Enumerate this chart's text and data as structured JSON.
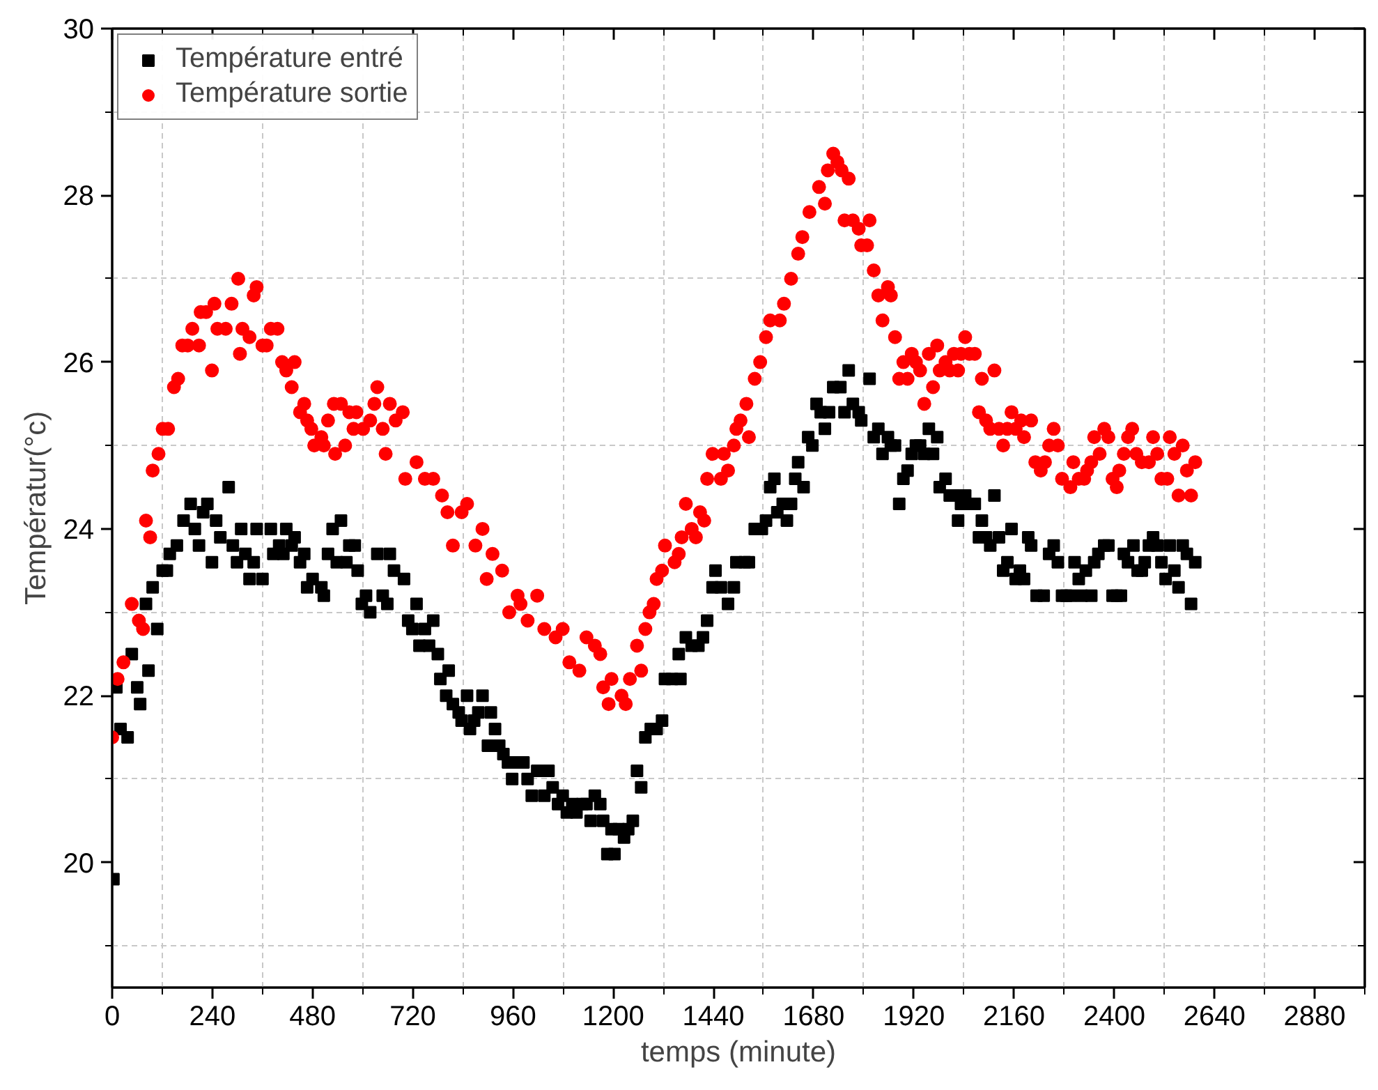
{
  "chart_data": {
    "type": "scatter",
    "xlabel": "temps (minute)",
    "ylabel": "Températur(°c)",
    "xlim": [
      0,
      3000
    ],
    "ylim": [
      18.5,
      30
    ],
    "xticks": [
      0,
      240,
      480,
      720,
      960,
      1200,
      1440,
      1680,
      1920,
      2160,
      2400,
      2640,
      2880
    ],
    "yticks": [
      20,
      22,
      24,
      26,
      28,
      30
    ],
    "grid": true,
    "legend": "top left",
    "series": [
      {
        "name": "Température entré",
        "color": "#000000",
        "marker": "square",
        "x": [
          3,
          10,
          20,
          37,
          47,
          60,
          67,
          81,
          87,
          97,
          108,
          121,
          131,
          138,
          155,
          171,
          188,
          198,
          208,
          218,
          228,
          239,
          249,
          259,
          279,
          289,
          299,
          309,
          319,
          329,
          339,
          346,
          360,
          380,
          386,
          400,
          410,
          417,
          430,
          437,
          450,
          460,
          467,
          480,
          501,
          507,
          517,
          528,
          538,
          548,
          561,
          568,
          581,
          588,
          598,
          608,
          618,
          635,
          648,
          659,
          665,
          675,
          699,
          709,
          719,
          729,
          736,
          749,
          759,
          769,
          780,
          786,
          800,
          806,
          816,
          830,
          837,
          850,
          857,
          867,
          877,
          887,
          900,
          907,
          917,
          927,
          937,
          948,
          958,
          971,
          985,
          995,
          1005,
          1018,
          1035,
          1045,
          1055,
          1068,
          1079,
          1089,
          1102,
          1112,
          1126,
          1136,
          1146,
          1156,
          1169,
          1176,
          1186,
          1196,
          1203,
          1213,
          1226,
          1236,
          1247,
          1257,
          1267,
          1277,
          1290,
          1304,
          1317,
          1324,
          1341,
          1361,
          1357,
          1374,
          1388,
          1404,
          1415,
          1425,
          1438,
          1445,
          1458,
          1475,
          1489,
          1495,
          1515,
          1525,
          1539,
          1556,
          1566,
          1576,
          1586,
          1593,
          1606,
          1616,
          1626,
          1636,
          1643,
          1656,
          1667,
          1677,
          1687,
          1697,
          1707,
          1717,
          1727,
          1744,
          1754,
          1764,
          1774,
          1788,
          1794,
          1814,
          1824,
          1835,
          1845,
          1858,
          1865,
          1875,
          1885,
          1895,
          1905,
          1915,
          1925,
          1935,
          1945,
          1956,
          1966,
          1976,
          1982,
          1996,
          2006,
          2016,
          2026,
          2033,
          2043,
          2053,
          2066,
          2076,
          2083,
          2093,
          2103,
          2113,
          2124,
          2134,
          2144,
          2154,
          2164,
          2174,
          2184,
          2194,
          2201,
          2214,
          2231,
          2244,
          2255,
          2265,
          2275,
          2285,
          2295,
          2305,
          2315,
          2322,
          2332,
          2345,
          2352,
          2362,
          2376,
          2386,
          2396,
          2406,
          2416,
          2423,
          2433,
          2446,
          2456,
          2466,
          2473,
          2483,
          2493,
          2503,
          2513,
          2523,
          2533,
          2544,
          2554,
          2564,
          2574,
          2584,
          2594
        ],
        "values": [
          19.8,
          22.1,
          21.6,
          21.5,
          22.5,
          22.1,
          21.9,
          23.1,
          22.3,
          23.3,
          22.8,
          23.5,
          23.5,
          23.7,
          23.8,
          24.1,
          24.3,
          24.0,
          23.8,
          24.2,
          24.3,
          23.6,
          24.1,
          23.9,
          24.5,
          23.8,
          23.6,
          24.0,
          23.7,
          23.4,
          23.6,
          24.0,
          23.4,
          24.0,
          23.7,
          23.8,
          23.7,
          24.0,
          23.8,
          23.9,
          23.6,
          23.7,
          23.3,
          23.4,
          23.3,
          23.2,
          23.7,
          24.0,
          23.6,
          24.1,
          23.6,
          23.8,
          23.8,
          23.5,
          23.1,
          23.2,
          23.0,
          23.7,
          23.2,
          23.1,
          23.7,
          23.5,
          23.4,
          22.9,
          22.8,
          23.1,
          22.6,
          22.8,
          22.6,
          22.9,
          22.5,
          22.2,
          22.0,
          22.3,
          21.9,
          21.8,
          21.7,
          22.0,
          21.6,
          21.7,
          21.8,
          22.0,
          21.4,
          21.8,
          21.6,
          21.4,
          21.3,
          21.2,
          21.0,
          21.2,
          21.2,
          21.0,
          20.8,
          21.1,
          20.8,
          21.1,
          20.9,
          20.7,
          20.8,
          20.6,
          20.7,
          20.6,
          20.7,
          20.7,
          20.5,
          20.8,
          20.7,
          20.5,
          20.1,
          20.4,
          20.1,
          20.4,
          20.3,
          20.4,
          20.5,
          21.1,
          20.9,
          21.5,
          21.6,
          21.6,
          21.7,
          22.2,
          22.2,
          22.2,
          22.5,
          22.7,
          22.6,
          22.6,
          22.7,
          22.9,
          23.3,
          23.5,
          23.3,
          23.1,
          23.3,
          23.6,
          23.6,
          23.6,
          24.0,
          24.0,
          24.1,
          24.5,
          24.6,
          24.2,
          24.3,
          24.1,
          24.3,
          24.6,
          24.8,
          24.5,
          25.1,
          25.0,
          25.5,
          25.4,
          25.2,
          25.4,
          25.7,
          25.7,
          25.4,
          25.9,
          25.5,
          25.4,
          25.3,
          25.8,
          25.1,
          25.2,
          24.9,
          25.1,
          25.0,
          25.0,
          24.3,
          24.6,
          24.7,
          24.9,
          25.0,
          25.0,
          24.9,
          25.2,
          24.9,
          25.1,
          24.5,
          24.6,
          24.4,
          24.4,
          24.1,
          24.3,
          24.4,
          24.3,
          24.3,
          23.9,
          24.1,
          23.9,
          23.8,
          24.4,
          23.9,
          23.5,
          23.6,
          24.0,
          23.4,
          23.5,
          23.4,
          23.9,
          23.8,
          23.2,
          23.2,
          23.7,
          23.8,
          23.6,
          23.2,
          23.2,
          23.2,
          23.6,
          23.4,
          23.2,
          23.5,
          23.2,
          23.6,
          23.7,
          23.8,
          23.8,
          23.2,
          23.2,
          23.2,
          23.7,
          23.6,
          23.8,
          23.5,
          23.5,
          23.6,
          23.8,
          23.9,
          23.8,
          23.6,
          23.4,
          23.8,
          23.5,
          23.3,
          23.8,
          23.7,
          23.1,
          23.6
        ]
      },
      {
        "name": "Température sortie",
        "color": "#ff0000",
        "marker": "circle",
        "x": [
          0,
          13,
          27,
          47,
          64,
          74,
          81,
          91,
          97,
          111,
          121,
          134,
          148,
          158,
          168,
          181,
          192,
          208,
          212,
          225,
          239,
          245,
          252,
          272,
          286,
          302,
          306,
          312,
          329,
          339,
          346,
          360,
          370,
          380,
          396,
          407,
          417,
          430,
          437,
          450,
          460,
          467,
          477,
          484,
          501,
          507,
          517,
          531,
          548,
          534,
          558,
          568,
          585,
          578,
          601,
          618,
          628,
          635,
          648,
          655,
          665,
          679,
          696,
          702,
          729,
          749,
          769,
          790,
          803,
          837,
          850,
          816,
          870,
          887,
          897,
          911,
          934,
          951,
          971,
          978,
          995,
          1018,
          1035,
          1062,
          1079,
          1095,
          1119,
          1136,
          1156,
          1169,
          1176,
          1196,
          1189,
          1220,
          1230,
          1240,
          1257,
          1267,
          1277,
          1287,
          1297,
          1304,
          1317,
          1324,
          1347,
          1357,
          1364,
          1374,
          1388,
          1398,
          1408,
          1418,
          1425,
          1438,
          1458,
          1465,
          1475,
          1489,
          1495,
          1505,
          1519,
          1525,
          1539,
          1552,
          1566,
          1576,
          1599,
          1609,
          1626,
          1643,
          1653,
          1670,
          1693,
          1707,
          1714,
          1727,
          1737,
          1747,
          1764,
          1754,
          1774,
          1788,
          1814,
          1794,
          1808,
          1824,
          1835,
          1858,
          1865,
          1845,
          1875,
          1885,
          1895,
          1905,
          1915,
          1925,
          1935,
          1945,
          1956,
          1966,
          1976,
          1982,
          1996,
          2006,
          2016,
          2026,
          2033,
          2043,
          2053,
          2066,
          2083,
          2113,
          2076,
          2093,
          2103,
          2124,
          2134,
          2144,
          2154,
          2164,
          2177,
          2184,
          2201,
          2211,
          2224,
          2234,
          2244,
          2255,
          2265,
          2275,
          2295,
          2302,
          2315,
          2328,
          2335,
          2345,
          2352,
          2365,
          2376,
          2386,
          2396,
          2406,
          2412,
          2423,
          2433,
          2443,
          2453,
          2466,
          2483,
          2493,
          2503,
          2513,
          2527,
          2533,
          2544,
          2554,
          2564,
          2574,
          2584,
          2594
        ],
        "values": [
          21.5,
          22.2,
          22.4,
          23.1,
          22.9,
          22.8,
          24.1,
          23.9,
          24.7,
          24.9,
          25.2,
          25.2,
          25.7,
          25.8,
          26.2,
          26.2,
          26.4,
          26.2,
          26.6,
          26.6,
          25.9,
          26.7,
          26.4,
          26.4,
          26.7,
          27.0,
          26.1,
          26.4,
          26.3,
          26.8,
          26.9,
          26.2,
          26.2,
          26.4,
          26.4,
          26.0,
          25.9,
          25.7,
          26.0,
          25.4,
          25.5,
          25.3,
          25.2,
          25.0,
          25.1,
          25.0,
          25.3,
          25.5,
          25.5,
          24.9,
          25.0,
          25.4,
          25.4,
          25.2,
          25.2,
          25.3,
          25.5,
          25.7,
          25.2,
          24.9,
          25.5,
          25.3,
          25.4,
          24.6,
          24.8,
          24.6,
          24.6,
          24.4,
          24.2,
          24.2,
          24.3,
          23.8,
          23.8,
          24.0,
          23.4,
          23.7,
          23.5,
          23.0,
          23.2,
          23.1,
          22.9,
          23.2,
          22.8,
          22.7,
          22.8,
          22.4,
          22.3,
          22.7,
          22.6,
          22.5,
          22.1,
          22.2,
          21.9,
          22.0,
          21.9,
          22.2,
          22.6,
          22.3,
          22.8,
          23.0,
          23.1,
          23.4,
          23.5,
          23.8,
          23.6,
          23.7,
          23.9,
          24.3,
          24.0,
          23.9,
          24.2,
          24.1,
          24.6,
          24.9,
          24.6,
          24.9,
          24.7,
          25.0,
          25.2,
          25.3,
          25.5,
          25.1,
          25.8,
          26.0,
          26.3,
          26.5,
          26.5,
          26.7,
          27.0,
          27.3,
          27.5,
          27.8,
          28.1,
          27.9,
          28.3,
          28.5,
          28.4,
          28.3,
          28.2,
          27.7,
          27.7,
          27.6,
          27.7,
          27.4,
          27.4,
          27.1,
          26.8,
          26.9,
          26.8,
          26.5,
          26.3,
          25.8,
          26.0,
          25.8,
          26.1,
          26.0,
          25.9,
          25.5,
          26.1,
          25.7,
          26.2,
          25.9,
          26.0,
          25.9,
          26.1,
          25.9,
          26.1,
          26.3,
          26.1,
          26.1,
          25.8,
          25.9,
          25.4,
          25.3,
          25.2,
          25.2,
          25.0,
          25.2,
          25.4,
          25.2,
          25.3,
          25.1,
          25.3,
          24.8,
          24.7,
          24.8,
          25.0,
          25.2,
          25.0,
          24.6,
          24.5,
          24.8,
          24.6,
          24.6,
          24.7,
          24.8,
          25.1,
          24.9,
          25.2,
          25.1,
          24.6,
          24.5,
          24.7,
          24.9,
          25.1,
          25.2,
          24.9,
          24.8,
          24.8,
          25.1,
          24.9,
          24.6,
          24.6,
          25.1,
          24.9,
          24.4,
          25.0,
          24.7,
          24.4,
          24.8
        ]
      }
    ]
  }
}
